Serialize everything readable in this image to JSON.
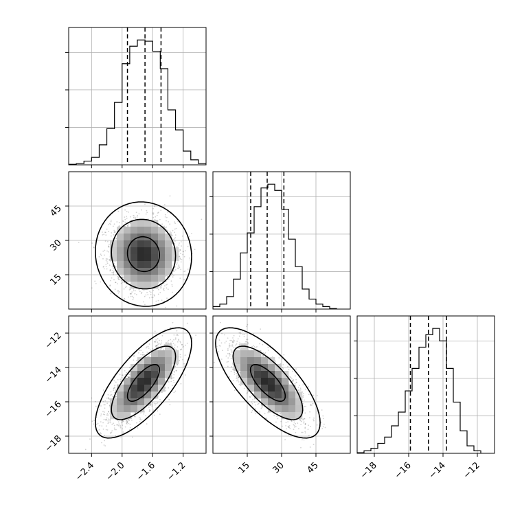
{
  "chart_data": {
    "type": "corner",
    "grid": true,
    "parameters": [
      {
        "id": "p0",
        "range": [
          -2.7,
          -0.9
        ],
        "ticks": [
          -2.4,
          -2.0,
          -1.6,
          -1.2
        ],
        "tick_labels": [
          "−2.4",
          "−2.0",
          "−1.6",
          "−1.2"
        ],
        "quantiles": [
          -1.93,
          -1.7,
          -1.49
        ],
        "hist_edges": [
          -2.7,
          -2.6,
          -2.5,
          -2.4,
          -2.3,
          -2.2,
          -2.1,
          -2.0,
          -1.9,
          -1.8,
          -1.7,
          -1.6,
          -1.5,
          -1.4,
          -1.3,
          -1.2,
          -1.1,
          -1.0,
          -0.9
        ],
        "hist_values": [
          0.004,
          0.01,
          0.03,
          0.06,
          0.16,
          0.29,
          0.5,
          0.81,
          0.95,
          1.0,
          0.99,
          0.91,
          0.77,
          0.44,
          0.28,
          0.11,
          0.04,
          0.01
        ]
      },
      {
        "id": "p1",
        "range": [
          0,
          60
        ],
        "ticks": [
          15,
          30,
          45
        ],
        "tick_labels": [
          "15",
          "30",
          "45"
        ],
        "quantiles": [
          16.5,
          23.7,
          31.0
        ],
        "hist_edges": [
          0,
          3,
          6,
          9,
          12,
          15,
          18,
          21,
          24,
          27,
          30,
          33,
          36,
          39,
          42,
          45,
          48,
          51,
          54
        ],
        "hist_values": [
          0.02,
          0.04,
          0.1,
          0.24,
          0.45,
          0.61,
          0.82,
          0.97,
          1.0,
          0.95,
          0.8,
          0.56,
          0.34,
          0.16,
          0.08,
          0.04,
          0.02,
          0.004
        ],
        "row_ticks": [
          15,
          30,
          45
        ],
        "row_tick_labels": [
          "15",
          "30",
          "45"
        ]
      },
      {
        "id": "p2",
        "range": [
          -19.0,
          -11.0
        ],
        "ticks": [
          -18,
          -16,
          -14,
          -12
        ],
        "tick_labels": [
          "−18",
          "−16",
          "−14",
          "−12"
        ],
        "quantiles": [
          -15.9,
          -14.85,
          -13.8
        ],
        "hist_edges": [
          -19.0,
          -18.6,
          -18.2,
          -17.8,
          -17.4,
          -17.0,
          -16.6,
          -16.2,
          -15.8,
          -15.4,
          -15.0,
          -14.6,
          -14.2,
          -13.8,
          -13.4,
          -13.0,
          -12.6,
          -12.2,
          -11.8
        ],
        "hist_values": [
          0.005,
          0.02,
          0.04,
          0.08,
          0.13,
          0.22,
          0.33,
          0.5,
          0.68,
          0.85,
          0.95,
          1.0,
          0.9,
          0.68,
          0.41,
          0.18,
          0.06,
          0.02
        ],
        "row_ticks": [
          -18,
          -16,
          -14,
          -12
        ],
        "row_tick_labels": [
          "−18",
          "−16",
          "−14",
          "−12"
        ]
      }
    ],
    "pairs": [
      {
        "x": "p0",
        "y": "p1",
        "mean": [
          -1.72,
          24.0
        ],
        "sd": [
          0.21,
          7.6
        ],
        "rho": -0.05,
        "contour_levels": [
          0.393,
          0.865,
          0.989
        ]
      },
      {
        "x": "p0",
        "y": "p2",
        "mean": [
          -1.72,
          -14.9
        ],
        "sd": [
          0.21,
          1.07
        ],
        "rho": 0.72,
        "contour_levels": [
          0.393,
          0.865,
          0.989
        ]
      },
      {
        "x": "p1",
        "y": "p2",
        "mean": [
          24.0,
          -14.9
        ],
        "sd": [
          7.6,
          1.07
        ],
        "rho": -0.72,
        "contour_levels": [
          0.393,
          0.865,
          0.989
        ]
      }
    ]
  }
}
